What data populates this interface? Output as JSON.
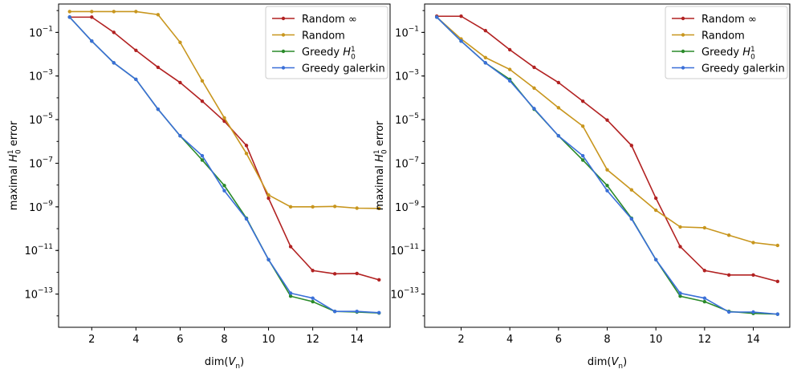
{
  "chart_data": [
    {
      "type": "line",
      "xlabel": "dim(V_n)",
      "ylabel": "maximal H_0^1 error",
      "yscale": "log",
      "xlim": [
        0.5,
        15.5
      ],
      "ylim": [
        3e-15,
        2
      ],
      "xticks": [
        2,
        4,
        6,
        8,
        10,
        12,
        14
      ],
      "yticks": [
        {
          "exp": -1
        },
        {
          "exp": -3
        },
        {
          "exp": -5
        },
        {
          "exp": -7
        },
        {
          "exp": -9
        },
        {
          "exp": -11
        },
        {
          "exp": -13
        }
      ],
      "grid": false,
      "legend": "top-right",
      "x": [
        1,
        2,
        3,
        4,
        5,
        6,
        7,
        8,
        9,
        10,
        11,
        12,
        13,
        14,
        15
      ],
      "series": [
        {
          "name": "Random ∞",
          "color": "#b22222",
          "values": [
            0.5,
            0.5,
            0.1,
            0.015,
            0.0025,
            0.0005,
            7e-05,
            8.5e-06,
            6.5e-07,
            2.5e-09,
            1.5e-11,
            1.2e-12,
            8.5e-13,
            8.8e-13,
            4.5e-13
          ]
        },
        {
          "name": "Random",
          "color": "#c8961e",
          "values": [
            0.9,
            0.9,
            0.9,
            0.9,
            0.65,
            0.035,
            0.0006,
            1.2e-05,
            2.8e-07,
            3.5e-09,
            1e-09,
            1e-09,
            1.05e-09,
            8.7e-10,
            8.5e-10
          ]
        },
        {
          "name": "Greedy H_0^1",
          "color": "#2a8a2a",
          "values": [
            0.5,
            0.04,
            0.004,
            0.0007,
            3e-05,
            1.8e-06,
            1.4e-07,
            9.5e-09,
            3e-10,
            3.8e-12,
            8e-14,
            4.5e-14,
            1.6e-14,
            1.5e-14,
            1.35e-14
          ]
        },
        {
          "name": "Greedy galerkin",
          "color": "#3a6fd8",
          "values": [
            0.5,
            0.04,
            0.004,
            0.0007,
            3e-05,
            1.8e-06,
            2.2e-07,
            5.5e-09,
            2.8e-10,
            3.8e-12,
            1.1e-13,
            6.5e-14,
            1.6e-14,
            1.6e-14,
            1.4e-14
          ]
        }
      ]
    },
    {
      "type": "line",
      "xlabel": "dim(V_n)",
      "ylabel": "maximal H_0^1 error",
      "yscale": "log",
      "xlim": [
        0.5,
        15.5
      ],
      "ylim": [
        3e-15,
        2
      ],
      "xticks": [
        2,
        4,
        6,
        8,
        10,
        12,
        14
      ],
      "yticks": [
        {
          "exp": -1
        },
        {
          "exp": -3
        },
        {
          "exp": -5
        },
        {
          "exp": -7
        },
        {
          "exp": -9
        },
        {
          "exp": -11
        },
        {
          "exp": -13
        }
      ],
      "grid": false,
      "legend": "top-right",
      "x": [
        1,
        2,
        3,
        4,
        5,
        6,
        7,
        8,
        9,
        10,
        11,
        12,
        13,
        14,
        15
      ],
      "series": [
        {
          "name": "Random ∞",
          "color": "#b22222",
          "values": [
            0.55,
            0.55,
            0.12,
            0.016,
            0.0025,
            0.0005,
            7e-05,
            9.5e-06,
            6.5e-07,
            2.5e-09,
            1.5e-11,
            1.2e-12,
            7.5e-13,
            7.5e-13,
            3.8e-13
          ]
        },
        {
          "name": "Random",
          "color": "#c8961e",
          "values": [
            0.5,
            0.05,
            0.007,
            0.002,
            0.00028,
            3.5e-05,
            5e-06,
            5e-08,
            6e-09,
            7e-10,
            1.2e-10,
            1.1e-10,
            5e-11,
            2.3e-11,
            1.7e-11
          ]
        },
        {
          "name": "Greedy H_0^1",
          "color": "#2a8a2a",
          "values": [
            0.5,
            0.04,
            0.004,
            0.0007,
            3e-05,
            1.8e-06,
            1.4e-07,
            9.5e-09,
            3e-10,
            3.8e-12,
            8e-14,
            4.5e-14,
            1.6e-14,
            1.3e-14,
            1.2e-14
          ]
        },
        {
          "name": "Greedy galerkin",
          "color": "#3a6fd8",
          "values": [
            0.5,
            0.04,
            0.004,
            0.0006,
            3.2e-05,
            1.8e-06,
            2.2e-07,
            5.5e-09,
            2.8e-10,
            3.8e-12,
            1.1e-13,
            6.5e-14,
            1.5e-14,
            1.5e-14,
            1.2e-14
          ]
        }
      ]
    }
  ]
}
